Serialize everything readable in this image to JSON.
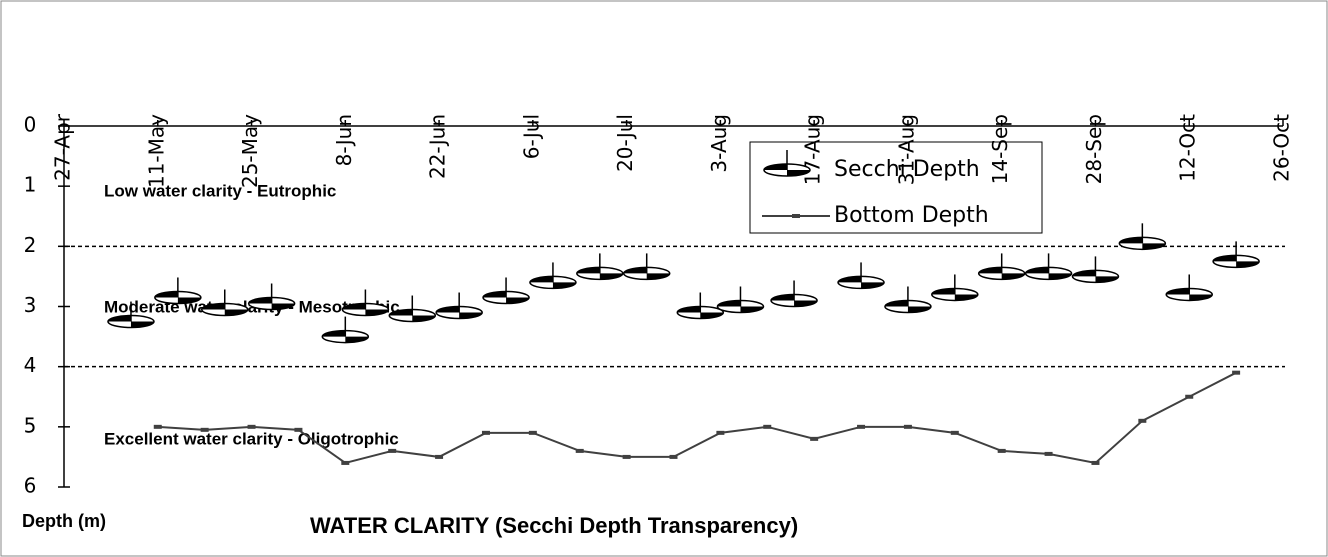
{
  "chart_data": {
    "type": "line",
    "title": "WATER CLARITY (Secchi Depth Transparency)",
    "y_label": "Depth (m)",
    "annotations": [
      "Low water clarity - Eutrophic",
      "Moderate water clarity - Mesotrophic",
      "Excellent water clarity - Oligotrophic"
    ],
    "thresholds": [
      2,
      4
    ],
    "xlim": [
      "27-Apr",
      "26-Oct"
    ],
    "xticks": [
      "27-Apr",
      "11-May",
      "25-May",
      "8-Jun",
      "22-Jun",
      "6-Jul",
      "20-Jul",
      "3-Aug",
      "17-Aug",
      "31-Aug",
      "14-Sep",
      "28-Sep",
      "12-Oct",
      "26-Oct"
    ],
    "ylim": [
      0,
      6
    ],
    "yticks": [
      0,
      1,
      2,
      3,
      4,
      5,
      6
    ],
    "y_inverted": true,
    "series": [
      {
        "name": "Secchi Depth",
        "color": "#000000",
        "marker": "secchi",
        "x": [
          "7-May",
          "14-May",
          "21-May",
          "28-May",
          "8-Jun",
          "11-Jun",
          "18-Jun",
          "25-Jun",
          "2-Jul",
          "9-Jul",
          "16-Jul",
          "23-Jul",
          "31-Jul",
          "6-Aug",
          "14-Aug",
          "24-Aug",
          "31-Aug",
          "7-Sep",
          "14-Sep",
          "21-Sep",
          "28-Sep",
          "5-Oct",
          "12-Oct",
          "19-Oct"
        ],
        "values": [
          3.25,
          2.85,
          3.05,
          2.95,
          3.5,
          3.05,
          3.15,
          3.1,
          2.85,
          2.6,
          2.45,
          2.45,
          3.1,
          3.0,
          2.9,
          2.6,
          3.0,
          2.8,
          2.45,
          2.45,
          2.5,
          1.95,
          2.8,
          2.25
        ]
      },
      {
        "name": "Bottom Depth",
        "color": "#404040",
        "marker": "line",
        "x": [
          "11-May",
          "18-May",
          "25-May",
          "1-Jun",
          "8-Jun",
          "15-Jun",
          "22-Jun",
          "29-Jun",
          "6-Jul",
          "13-Jul",
          "20-Jul",
          "27-Jul",
          "3-Aug",
          "10-Aug",
          "17-Aug",
          "24-Aug",
          "31-Aug",
          "7-Sep",
          "14-Sep",
          "21-Sep",
          "28-Sep",
          "5-Oct",
          "12-Oct",
          "19-Oct"
        ],
        "values": [
          5.0,
          5.05,
          5.0,
          5.05,
          5.6,
          5.4,
          5.5,
          5.1,
          5.1,
          5.4,
          5.5,
          5.5,
          5.1,
          5.0,
          5.2,
          5.0,
          5.0,
          5.1,
          5.4,
          5.45,
          5.6,
          4.9,
          4.5,
          4.1
        ]
      }
    ]
  }
}
